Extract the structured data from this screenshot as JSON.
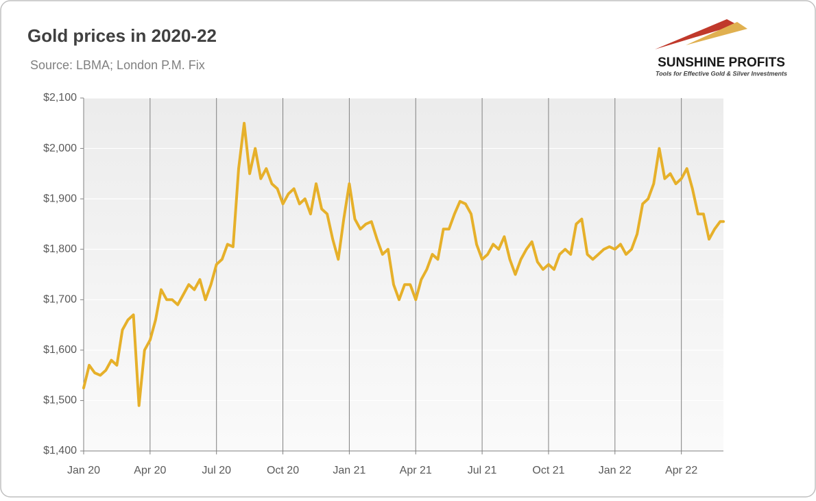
{
  "chart_data": {
    "type": "line",
    "title": "Gold prices in 2020-22",
    "subtitle": "Source: LBMA; London P.M. Fix",
    "logo": {
      "name": "SUNSHINE PROFITS",
      "tagline": "Tools for Effective Gold & Silver Investments"
    },
    "color": "#e6b02a",
    "grid": true,
    "xlim": [
      0,
      28.9
    ],
    "xticks": [
      {
        "value": 0,
        "label": "Jan 20"
      },
      {
        "value": 3,
        "label": "Apr 20"
      },
      {
        "value": 6,
        "label": "Jul 20"
      },
      {
        "value": 9,
        "label": "Oct 20"
      },
      {
        "value": 12,
        "label": "Jan 21"
      },
      {
        "value": 15,
        "label": "Apr 21"
      },
      {
        "value": 18,
        "label": "Jul 21"
      },
      {
        "value": 21,
        "label": "Oct 21"
      },
      {
        "value": 24,
        "label": "Jan 22"
      },
      {
        "value": 27,
        "label": "Apr 22"
      }
    ],
    "ylim": [
      1400,
      2100
    ],
    "yticks": [
      {
        "value": 1400,
        "label": "$1,400"
      },
      {
        "value": 1500,
        "label": "$1,500"
      },
      {
        "value": 1600,
        "label": "$1,600"
      },
      {
        "value": 1700,
        "label": "$1,700"
      },
      {
        "value": 1800,
        "label": "$1,800"
      },
      {
        "value": 1900,
        "label": "$1,900"
      },
      {
        "value": 2000,
        "label": "$2,000"
      },
      {
        "value": 2100,
        "label": "$2,100"
      }
    ],
    "x": [
      0,
      0.25,
      0.5,
      0.75,
      1,
      1.25,
      1.5,
      1.75,
      2,
      2.25,
      2.5,
      2.75,
      3,
      3.25,
      3.5,
      3.75,
      4,
      4.25,
      4.5,
      4.75,
      5,
      5.25,
      5.5,
      5.75,
      6,
      6.25,
      6.5,
      6.75,
      7,
      7.25,
      7.5,
      7.75,
      8,
      8.25,
      8.5,
      8.75,
      9,
      9.25,
      9.5,
      9.75,
      10,
      10.25,
      10.5,
      10.75,
      11,
      11.25,
      11.5,
      11.75,
      12,
      12.25,
      12.5,
      12.75,
      13,
      13.25,
      13.5,
      13.75,
      14,
      14.25,
      14.5,
      14.75,
      15,
      15.25,
      15.5,
      15.75,
      16,
      16.25,
      16.5,
      16.75,
      17,
      17.25,
      17.5,
      17.75,
      18,
      18.25,
      18.5,
      18.75,
      19,
      19.25,
      19.5,
      19.75,
      20,
      20.25,
      20.5,
      20.75,
      21,
      21.25,
      21.5,
      21.75,
      22,
      22.25,
      22.5,
      22.75,
      23,
      23.25,
      23.5,
      23.75,
      24,
      24.25,
      24.5,
      24.75,
      25,
      25.25,
      25.5,
      25.75,
      26,
      26.25,
      26.5,
      26.75,
      27,
      27.25,
      27.5,
      27.75,
      28,
      28.25,
      28.5,
      28.75,
      28.9
    ],
    "values": [
      1525,
      1570,
      1555,
      1550,
      1560,
      1580,
      1570,
      1640,
      1660,
      1670,
      1490,
      1600,
      1620,
      1660,
      1720,
      1700,
      1700,
      1690,
      1710,
      1730,
      1720,
      1740,
      1700,
      1730,
      1770,
      1780,
      1810,
      1805,
      1960,
      2050,
      1950,
      2000,
      1940,
      1960,
      1930,
      1920,
      1890,
      1910,
      1920,
      1890,
      1900,
      1870,
      1930,
      1880,
      1870,
      1820,
      1780,
      1860,
      1930,
      1860,
      1840,
      1850,
      1855,
      1820,
      1790,
      1800,
      1730,
      1700,
      1730,
      1730,
      1700,
      1740,
      1760,
      1790,
      1780,
      1840,
      1840,
      1870,
      1895,
      1890,
      1870,
      1810,
      1780,
      1790,
      1810,
      1800,
      1825,
      1780,
      1750,
      1780,
      1800,
      1815,
      1775,
      1760,
      1770,
      1760,
      1790,
      1800,
      1790,
      1850,
      1860,
      1790,
      1780,
      1790,
      1800,
      1805,
      1800,
      1810,
      1790,
      1800,
      1830,
      1890,
      1900,
      1930,
      2000,
      1940,
      1950,
      1930,
      1940,
      1960,
      1920,
      1870,
      1870,
      1820,
      1840,
      1855,
      1855
    ]
  }
}
